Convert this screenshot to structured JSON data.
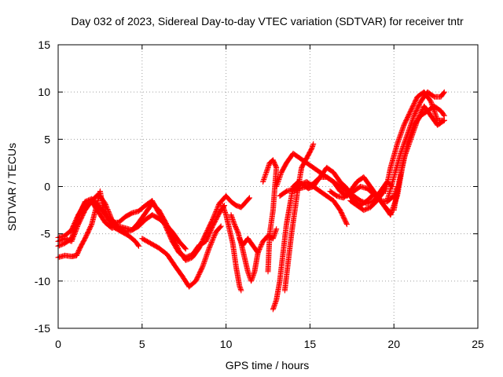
{
  "chart_data": {
    "type": "scatter",
    "title": "Day 032 of 2023, Sidereal Day-to-day VTEC variation (SDTVAR) for receiver tntr",
    "xlabel": "GPS time / hours",
    "ylabel": "SDTVAR / TECUs",
    "xlim": [
      0,
      25
    ],
    "ylim": [
      -15,
      15
    ],
    "xticks": [
      0,
      5,
      10,
      15,
      20,
      25
    ],
    "yticks": [
      -15,
      -10,
      -5,
      0,
      5,
      10,
      15
    ],
    "grid": true,
    "marker": "plus",
    "series": [
      {
        "color": "#ff0000",
        "traces": [
          [
            [
              0,
              -5.8
            ],
            [
              0.4,
              -5.5
            ],
            [
              0.8,
              -5.8
            ],
            [
              1.2,
              -4
            ],
            [
              1.6,
              -2.5
            ],
            [
              2,
              -1.5
            ],
            [
              2.4,
              -0.8
            ],
            [
              2.8,
              -1.8
            ],
            [
              3.2,
              -3.5
            ],
            [
              3.6,
              -4.3
            ],
            [
              4,
              -4.8
            ],
            [
              4.4,
              -4.6
            ],
            [
              4.8,
              -3.8
            ],
            [
              5.2,
              -2.8
            ],
            [
              5.6,
              -1.8
            ],
            [
              6,
              -2.5
            ],
            [
              6.4,
              -3.8
            ],
            [
              6.8,
              -5.2
            ],
            [
              7.2,
              -6.8
            ],
            [
              7.6,
              -7.8
            ],
            [
              8,
              -7.5
            ],
            [
              8.4,
              -6.5
            ],
            [
              8.8,
              -5
            ],
            [
              9.2,
              -3.5
            ],
            [
              9.6,
              -1.8
            ],
            [
              10,
              -1
            ],
            [
              10.3,
              -1.6
            ],
            [
              10.6,
              -2
            ],
            [
              10.9,
              -2.2
            ],
            [
              11.2,
              -1.6
            ],
            [
              11.4,
              -1.2
            ]
          ],
          [
            [
              0,
              -6.3
            ],
            [
              0.4,
              -6
            ],
            [
              0.8,
              -5.5
            ],
            [
              1.2,
              -3.2
            ],
            [
              1.6,
              -1.6
            ],
            [
              2,
              -1.3
            ],
            [
              2.4,
              -2
            ],
            [
              2.8,
              -3
            ],
            [
              3.2,
              -3.8
            ],
            [
              3.6,
              -3.8
            ],
            [
              4,
              -3.2
            ],
            [
              4.4,
              -2.8
            ],
            [
              4.8,
              -2.6
            ],
            [
              5.2,
              -2
            ],
            [
              5.6,
              -1.5
            ],
            [
              6,
              -2.8
            ],
            [
              6.4,
              -4.2
            ],
            [
              6.8,
              -5.8
            ],
            [
              7.2,
              -7
            ],
            [
              7.6,
              -7.5
            ],
            [
              8,
              -7.2
            ],
            [
              8.4,
              -6.2
            ],
            [
              8.8,
              -5.8
            ],
            [
              9.2,
              -4.2
            ],
            [
              9.6,
              -2.8
            ],
            [
              9.9,
              -2
            ]
          ],
          [
            [
              0,
              -7.5
            ],
            [
              0.4,
              -7.3
            ],
            [
              0.8,
              -7.4
            ],
            [
              1.1,
              -7.3
            ],
            [
              1.3,
              -6.5
            ],
            [
              1.6,
              -5.5
            ],
            [
              2,
              -4
            ],
            [
              2.3,
              -2
            ],
            [
              2.5,
              -0.5
            ],
            [
              2.7,
              -2.5
            ],
            [
              3,
              -3.5
            ],
            [
              3.4,
              -4.4
            ],
            [
              3.8,
              -4.8
            ],
            [
              4.2,
              -5.2
            ],
            [
              4.6,
              -5.8
            ],
            [
              4.8,
              -6.3
            ]
          ],
          [
            [
              0,
              -5.4
            ],
            [
              0.4,
              -5.2
            ],
            [
              0.8,
              -4.6
            ],
            [
              1.2,
              -3
            ],
            [
              1.6,
              -1.8
            ],
            [
              2,
              -1.6
            ],
            [
              2.4,
              -2.7
            ],
            [
              2.8,
              -3.8
            ],
            [
              3.2,
              -4.4
            ],
            [
              3.6,
              -4.2
            ],
            [
              4,
              -4.4
            ],
            [
              4.4,
              -4.6
            ],
            [
              4.8,
              -4.2
            ],
            [
              5.2,
              -3.5
            ],
            [
              5.6,
              -3
            ],
            [
              6,
              -3.4
            ],
            [
              6.4,
              -4
            ],
            [
              6.8,
              -4.8
            ],
            [
              7.2,
              -5.8
            ],
            [
              7.6,
              -6.6
            ]
          ],
          [
            [
              5,
              -5.5
            ],
            [
              5.5,
              -6
            ],
            [
              6,
              -6.5
            ],
            [
              6.5,
              -7.2
            ],
            [
              7,
              -8.5
            ],
            [
              7.4,
              -9.5
            ],
            [
              7.8,
              -10.6
            ],
            [
              8.2,
              -10
            ],
            [
              8.6,
              -8.5
            ],
            [
              9,
              -6.5
            ],
            [
              9.4,
              -4.8
            ],
            [
              9.7,
              -4.2
            ]
          ],
          [
            [
              9.8,
              -2
            ],
            [
              10,
              -3
            ],
            [
              10.2,
              -4.5
            ],
            [
              10.4,
              -6
            ],
            [
              10.6,
              -8.5
            ],
            [
              10.8,
              -10.5
            ],
            [
              10.9,
              -11
            ]
          ],
          [
            [
              10.3,
              -3
            ],
            [
              10.5,
              -4
            ],
            [
              10.7,
              -4.8
            ],
            [
              10.9,
              -6
            ],
            [
              11.1,
              -7.5
            ],
            [
              11.3,
              -9
            ],
            [
              11.5,
              -10
            ],
            [
              11.7,
              -9
            ],
            [
              11.9,
              -7
            ],
            [
              12.2,
              -5.8
            ],
            [
              12.5,
              -5.2
            ],
            [
              12.8,
              -5.5
            ],
            [
              13,
              -4.5
            ]
          ],
          [
            [
              11.9,
              -7
            ],
            [
              11.5,
              -6
            ],
            [
              11.3,
              -5.5
            ],
            [
              11,
              -6.2
            ],
            [
              10.8,
              -5.5
            ]
          ],
          [
            [
              12.2,
              0.5
            ],
            [
              12.4,
              1.5
            ],
            [
              12.6,
              2.5
            ],
            [
              12.8,
              2.8
            ],
            [
              13,
              2
            ],
            [
              12.8,
              -2.5
            ],
            [
              12.6,
              -5
            ],
            [
              12.5,
              -9
            ]
          ],
          [
            [
              12.8,
              -13
            ],
            [
              13,
              -12
            ],
            [
              13.2,
              -10
            ],
            [
              13.4,
              -7
            ],
            [
              13.6,
              -4
            ],
            [
              13.8,
              -2
            ],
            [
              14,
              0
            ],
            [
              14.3,
              0.5
            ],
            [
              14.6,
              0.2
            ],
            [
              14.9,
              -0.2
            ],
            [
              15.2,
              0
            ],
            [
              15.6,
              1
            ],
            [
              16,
              1
            ],
            [
              16.4,
              0.5
            ],
            [
              16.8,
              -0.5
            ],
            [
              17.2,
              -1
            ],
            [
              17.6,
              -0.5
            ],
            [
              18,
              0
            ],
            [
              18.4,
              -0.2
            ],
            [
              18.8,
              -0.8
            ],
            [
              19.2,
              -1.5
            ],
            [
              19.6,
              -1.6
            ],
            [
              20,
              -1
            ],
            [
              20.2,
              0
            ]
          ],
          [
            [
              13.5,
              -11
            ],
            [
              13.7,
              -8
            ],
            [
              13.9,
              -5
            ],
            [
              14.1,
              -2.5
            ],
            [
              14.3,
              0
            ],
            [
              14.5,
              2
            ],
            [
              14.8,
              3
            ],
            [
              15.1,
              4
            ],
            [
              15.2,
              4.5
            ]
          ],
          [
            [
              13,
              0
            ],
            [
              13.3,
              1.5
            ],
            [
              13.6,
              2.5
            ],
            [
              14,
              3.5
            ],
            [
              14.4,
              3
            ],
            [
              14.8,
              2.5
            ],
            [
              15.2,
              2
            ],
            [
              15.6,
              1.5
            ],
            [
              16,
              1
            ],
            [
              16.4,
              0.5
            ],
            [
              16.8,
              0
            ],
            [
              17.2,
              -0.5
            ],
            [
              17.6,
              -1.5
            ],
            [
              18,
              -2
            ],
            [
              18.4,
              -1.5
            ],
            [
              18.8,
              -0.8
            ],
            [
              19.2,
              -1.5
            ],
            [
              19.6,
              -2.5
            ],
            [
              19.8,
              -3
            ]
          ],
          [
            [
              13.2,
              -1
            ],
            [
              13.6,
              -0.5
            ],
            [
              14,
              -0.3
            ],
            [
              14.4,
              0.2
            ],
            [
              14.8,
              0.5
            ],
            [
              15.2,
              0
            ],
            [
              15.6,
              -0.5
            ],
            [
              16,
              -1
            ],
            [
              16.4,
              -1.5
            ],
            [
              16.8,
              -2.5
            ],
            [
              17.2,
              -4
            ]
          ],
          [
            [
              14,
              -0.5
            ],
            [
              14.4,
              -0.2
            ],
            [
              14.8,
              0
            ],
            [
              15.2,
              0.3
            ],
            [
              15.6,
              1
            ],
            [
              16,
              2
            ],
            [
              16.4,
              1.5
            ],
            [
              16.8,
              0.5
            ],
            [
              17.2,
              -0.2
            ],
            [
              17.6,
              -1
            ],
            [
              18,
              -1.5
            ],
            [
              18.4,
              -1.8
            ],
            [
              18.8,
              -1.5
            ],
            [
              19.2,
              -0.5
            ],
            [
              19.6,
              0.5
            ],
            [
              19.9,
              0
            ]
          ],
          [
            [
              16.2,
              -0.5
            ],
            [
              16.6,
              -1
            ],
            [
              17,
              -1.2
            ],
            [
              17.4,
              -0.5
            ],
            [
              17.8,
              0.5
            ],
            [
              18.2,
              1
            ],
            [
              18.6,
              0
            ],
            [
              19,
              -1
            ],
            [
              19.4,
              -2
            ],
            [
              19.8,
              -2.8
            ]
          ],
          [
            [
              17.4,
              -1.5
            ],
            [
              17.8,
              -2
            ],
            [
              18.2,
              -2.5
            ],
            [
              18.6,
              -2.2
            ],
            [
              19,
              -1.5
            ],
            [
              19.4,
              -0.5
            ],
            [
              19.6,
              0.5
            ]
          ],
          [
            [
              19.5,
              -0.5
            ],
            [
              19.8,
              2
            ],
            [
              20.2,
              4.5
            ],
            [
              20.6,
              6.5
            ],
            [
              21,
              8
            ],
            [
              21.4,
              9.5
            ],
            [
              21.8,
              10
            ],
            [
              22.2,
              9
            ],
            [
              22.6,
              7
            ],
            [
              23,
              7
            ]
          ],
          [
            [
              19.6,
              -1.5
            ],
            [
              20,
              1
            ],
            [
              20.4,
              3.5
            ],
            [
              20.8,
              5.5
            ],
            [
              21.2,
              7.5
            ],
            [
              21.6,
              9
            ],
            [
              22,
              10
            ],
            [
              22.4,
              9.5
            ],
            [
              22.8,
              9.5
            ],
            [
              23,
              10
            ]
          ],
          [
            [
              20,
              -2.5
            ],
            [
              20.3,
              0.5
            ],
            [
              20.6,
              3
            ],
            [
              21,
              5
            ],
            [
              21.4,
              7
            ],
            [
              21.8,
              8.5
            ],
            [
              22.2,
              7.5
            ],
            [
              22.6,
              6.5
            ],
            [
              23,
              7
            ]
          ],
          [
            [
              19.8,
              -3
            ],
            [
              20.2,
              -1
            ],
            [
              20.5,
              2
            ],
            [
              20.8,
              4.5
            ],
            [
              21.2,
              6.5
            ],
            [
              21.6,
              7.5
            ],
            [
              22,
              8
            ],
            [
              22.4,
              8.5
            ],
            [
              22.8,
              8
            ],
            [
              23,
              7.5
            ]
          ]
        ]
      }
    ]
  }
}
